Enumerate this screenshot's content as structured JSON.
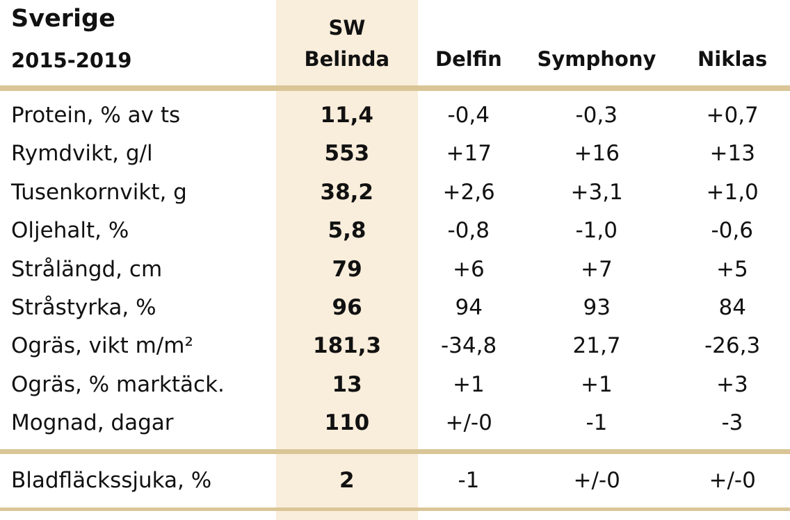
{
  "header": {
    "title": "Sverige",
    "subtitle": "2015-2019"
  },
  "columns": [
    [
      "SW",
      "Belinda"
    ],
    [
      "Delfin"
    ],
    [
      "Symphony"
    ],
    [
      "Niklas"
    ]
  ],
  "rows": [
    [
      "Protein, % av ts",
      "11,4",
      "-0,4",
      "-0,3",
      "+0,7"
    ],
    [
      "Rymdvikt, g/l",
      "553",
      "+17",
      "+16",
      "+13"
    ],
    [
      "Tusenkornvikt, g",
      "38,2",
      "+2,6",
      "+3,1",
      "+1,0"
    ],
    [
      "Oljehalt, %",
      "5,8",
      "-0,8",
      "-1,0",
      "-0,6"
    ],
    [
      "Strålängd, cm",
      "79",
      "+6",
      "+7",
      "+5"
    ],
    [
      "Stråstyrka, %",
      "96",
      "94",
      "93",
      "84"
    ],
    [
      "Ogräs, vikt m/m²",
      "181,3",
      "-34,8",
      "21,7",
      "-26,3"
    ],
    [
      "Ogräs, % marktäck.",
      "13",
      "+1",
      "+1",
      "+3"
    ],
    [
      "Mognad, dagar",
      "110",
      "+/-0",
      "-1",
      "-3"
    ]
  ],
  "footer_rows": [
    [
      "Bladfläckssjuka, %",
      "2",
      "-1",
      "+/-0",
      "+/-0"
    ]
  ]
}
